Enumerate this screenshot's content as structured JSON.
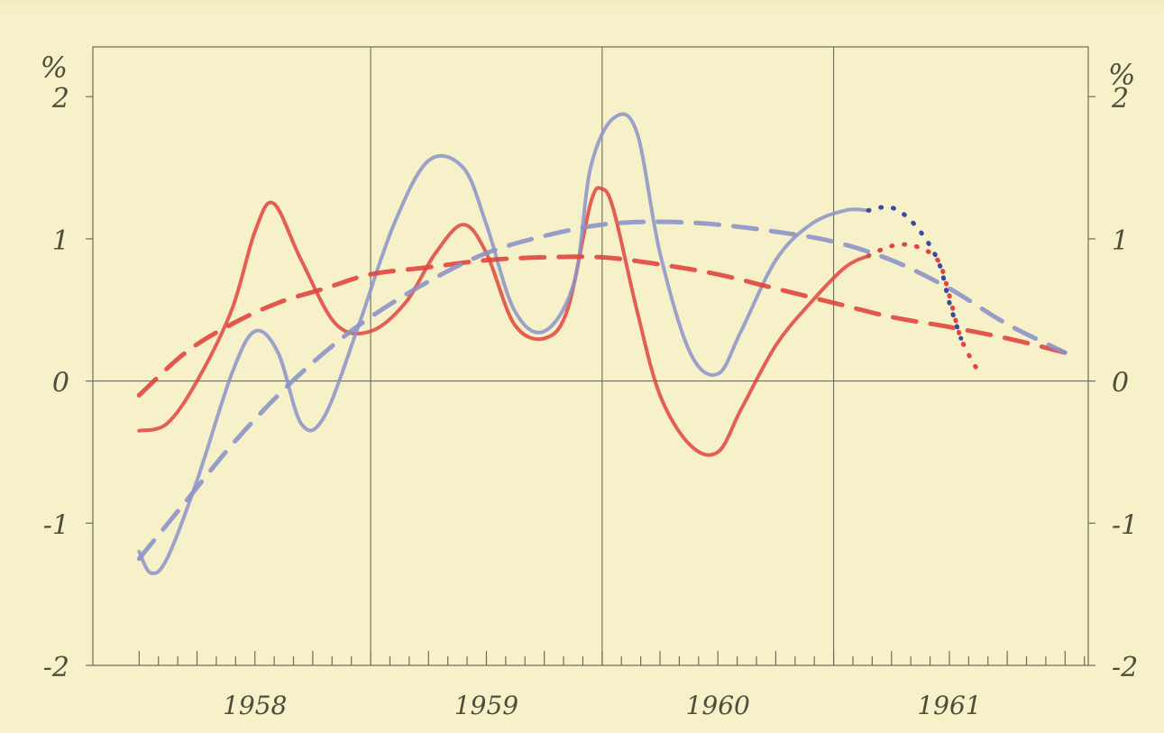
{
  "chart_data": {
    "type": "line",
    "title": "",
    "xlabel": "",
    "ylabel": "",
    "y_unit_left": "%",
    "y_unit_right": "%",
    "ylim": [
      -2,
      2.35
    ],
    "xlim": [
      1957.3,
      1961.6
    ],
    "y_ticks_left": [
      "2",
      "1",
      "0",
      "-1",
      "-2"
    ],
    "y_ticks_right": [
      "2",
      "1",
      "0",
      "-1",
      "-2"
    ],
    "year_labels": [
      "1958",
      "1959",
      "1960",
      "1961"
    ],
    "grid": "year and zero lines",
    "colors": {
      "red": "#e0453e",
      "blue": "#8c93c9",
      "dark_blue": "#3b4a9c"
    },
    "series": [
      {
        "style": "solid",
        "color": "red",
        "x": [
          1957.5,
          1957.62,
          1957.75,
          1957.9,
          1958.0,
          1958.08,
          1958.2,
          1958.35,
          1958.5,
          1958.65,
          1958.78,
          1958.9,
          1959.0,
          1959.12,
          1959.25,
          1959.35,
          1959.45,
          1959.5,
          1959.55,
          1959.65,
          1959.75,
          1959.88,
          1960.0,
          1960.1,
          1960.25,
          1960.4,
          1960.55,
          1960.65
        ],
        "y": [
          -0.35,
          -0.3,
          0.0,
          0.5,
          1.05,
          1.25,
          0.85,
          0.4,
          0.35,
          0.55,
          0.9,
          1.1,
          0.9,
          0.4,
          0.3,
          0.5,
          1.25,
          1.35,
          1.2,
          0.5,
          -0.1,
          -0.45,
          -0.5,
          -0.2,
          0.25,
          0.55,
          0.8,
          0.88
        ]
      },
      {
        "style": "solid",
        "color": "blue",
        "x": [
          1957.5,
          1957.55,
          1957.62,
          1957.75,
          1957.9,
          1958.0,
          1958.1,
          1958.2,
          1958.3,
          1958.45,
          1958.6,
          1958.75,
          1958.9,
          1959.0,
          1959.12,
          1959.25,
          1959.38,
          1959.45,
          1959.55,
          1959.65,
          1959.75,
          1959.88,
          1960.0,
          1960.1,
          1960.25,
          1960.4,
          1960.55,
          1960.65
        ],
        "y": [
          -1.2,
          -1.35,
          -1.25,
          -0.7,
          0.05,
          0.35,
          0.2,
          -0.3,
          -0.25,
          0.4,
          1.1,
          1.55,
          1.5,
          1.1,
          0.5,
          0.35,
          0.7,
          1.5,
          1.85,
          1.75,
          0.9,
          0.2,
          0.05,
          0.35,
          0.85,
          1.1,
          1.2,
          1.2
        ]
      },
      {
        "style": "dashed",
        "color": "red",
        "x": [
          1957.5,
          1957.7,
          1957.9,
          1958.1,
          1958.3,
          1958.5,
          1958.75,
          1959.0,
          1959.25,
          1959.5,
          1959.75,
          1960.0,
          1960.25,
          1960.5,
          1960.75,
          1961.0,
          1961.25,
          1961.5
        ],
        "y": [
          -0.1,
          0.2,
          0.4,
          0.55,
          0.65,
          0.75,
          0.8,
          0.85,
          0.87,
          0.87,
          0.82,
          0.75,
          0.65,
          0.55,
          0.45,
          0.38,
          0.3,
          0.2
        ]
      },
      {
        "style": "dashed",
        "color": "blue",
        "x": [
          1957.5,
          1957.7,
          1957.9,
          1958.1,
          1958.3,
          1958.5,
          1958.75,
          1959.0,
          1959.25,
          1959.5,
          1959.75,
          1960.0,
          1960.25,
          1960.5,
          1960.75,
          1961.0,
          1961.25,
          1961.5
        ],
        "y": [
          -1.25,
          -0.85,
          -0.45,
          -0.1,
          0.2,
          0.45,
          0.7,
          0.9,
          1.02,
          1.1,
          1.12,
          1.1,
          1.05,
          0.98,
          0.85,
          0.65,
          0.4,
          0.2
        ]
      },
      {
        "style": "dotted",
        "color": "red",
        "x": [
          1960.65,
          1960.75,
          1960.85,
          1960.95,
          1961.0,
          1961.05,
          1961.12
        ],
        "y": [
          0.88,
          0.95,
          0.95,
          0.85,
          0.6,
          0.3,
          0.08
        ]
      },
      {
        "style": "dotted",
        "color": "dark_blue",
        "x": [
          1960.65,
          1960.75,
          1960.85,
          1960.95,
          1961.0,
          1961.05
        ],
        "y": [
          1.2,
          1.22,
          1.1,
          0.85,
          0.55,
          0.3
        ]
      }
    ]
  }
}
